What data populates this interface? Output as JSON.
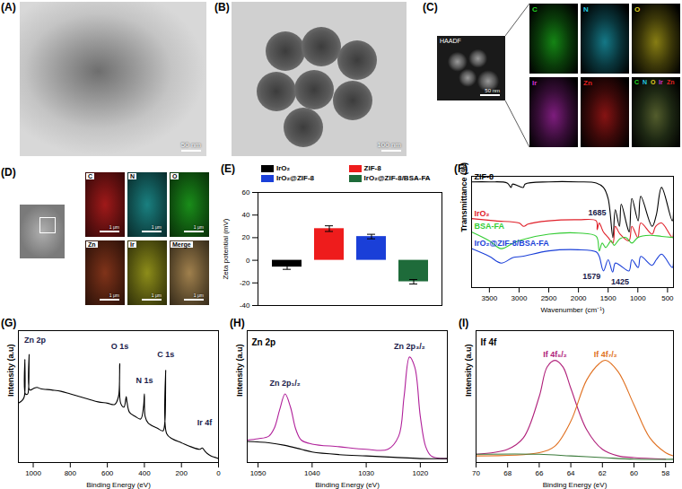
{
  "chart_data": [
    {
      "type": "image",
      "title": "(A)",
      "annotations": [
        "50 nm"
      ]
    },
    {
      "type": "image",
      "title": "(B)",
      "annotations": [
        "100 nm"
      ]
    },
    {
      "type": "image",
      "title": "(C)",
      "annotations": [
        "HAADF",
        "50 nm"
      ],
      "maps": [
        "C",
        "N",
        "O",
        "Ir",
        "Zn"
      ],
      "colors": [
        "#22dd22",
        "#22c8e0",
        "#e0d020",
        "#d030d0",
        "#e02020"
      ]
    },
    {
      "type": "image",
      "title": "(D)",
      "annotations": [
        "1 μm"
      ],
      "maps": [
        "C",
        "N",
        "O",
        "Zn",
        "Ir",
        "Merge"
      ],
      "colors": [
        "#c82020",
        "#20a0a0",
        "#20b020",
        "#a04020",
        "#b0b020",
        "#c8a060"
      ]
    },
    {
      "type": "bar",
      "title": "(E)",
      "categories": [
        "IrO₂",
        "ZIF-8",
        "IrO₂@ZIF-8",
        "IrO₂@ZIF-8/BSA-FA"
      ],
      "values": [
        -6,
        28,
        21,
        -19
      ],
      "errors": [
        2,
        2.5,
        2,
        2
      ],
      "colors": [
        "#000000",
        "#ee1c1c",
        "#1a3fd8",
        "#1e6b3a"
      ],
      "y_label": "Zeta potential (mV)",
      "ylim": [
        -40,
        60
      ],
      "yticks": [
        -40,
        -20,
        0,
        20,
        40,
        60
      ],
      "legend": "top",
      "tick_labels": "y",
      "grid": false
    },
    {
      "type": "line",
      "title": "(F)",
      "x_label": "Wavenumber (cm⁻¹)",
      "y_label": "Transmittance (%)",
      "xlim": [
        3800,
        400
      ],
      "xticks": [
        3500,
        3000,
        2500,
        2000,
        1500,
        1000,
        500
      ],
      "ylim": [
        0,
        100
      ],
      "tick_labels": "x",
      "series": [
        {
          "name": "ZIF-8",
          "color": "#000000",
          "x": [
            3800,
            3500,
            3200,
            3135,
            3110,
            2930,
            2900,
            2500,
            2000,
            1700,
            1580,
            1500,
            1420,
            1380,
            1310,
            1280,
            1180,
            1145,
            1100,
            995,
            950,
            760,
            690,
            600,
            420,
            400
          ],
          "values": [
            95,
            95,
            94,
            90,
            93,
            90,
            93,
            95,
            95,
            94,
            90,
            80,
            45,
            70,
            55,
            75,
            55,
            50,
            80,
            60,
            82,
            55,
            65,
            90,
            60,
            80
          ]
        },
        {
          "name": "IrO₂",
          "color": "#e0202a",
          "x": [
            3800,
            3400,
            3000,
            2920,
            2850,
            2500,
            2000,
            1700,
            1685,
            1650,
            1580,
            1500,
            1420,
            1380,
            1300,
            1150,
            1100,
            1000,
            950,
            760,
            700,
            600,
            420,
            400
          ],
          "values": [
            62,
            60,
            58,
            55,
            57,
            60,
            61,
            60,
            52,
            58,
            50,
            45,
            40,
            55,
            48,
            42,
            55,
            45,
            58,
            48,
            55,
            58,
            45,
            50
          ]
        },
        {
          "name": "BSA-FA",
          "color": "#33cc33",
          "x": [
            3800,
            3500,
            3300,
            3100,
            2950,
            2500,
            2000,
            1700,
            1650,
            1600,
            1540,
            1450,
            1400,
            1300,
            1200,
            1100,
            1000,
            800,
            600,
            400
          ],
          "values": [
            50,
            42,
            35,
            40,
            43,
            48,
            49,
            46,
            33,
            40,
            36,
            42,
            38,
            44,
            45,
            40,
            45,
            47,
            46,
            45
          ]
        },
        {
          "name": "IrO₂@ZIF-8/BSA-FA",
          "color": "#1a3fd8",
          "x": [
            3800,
            3500,
            3300,
            3100,
            2950,
            2500,
            2000,
            1700,
            1650,
            1579,
            1500,
            1425,
            1380,
            1300,
            1150,
            1100,
            995,
            950,
            760,
            690,
            600,
            420,
            400
          ],
          "values": [
            35,
            28,
            22,
            27,
            28,
            33,
            34,
            32,
            28,
            15,
            25,
            14,
            22,
            20,
            15,
            25,
            18,
            28,
            20,
            25,
            30,
            18,
            25
          ]
        }
      ],
      "annotations": [
        {
          "text": "1685",
          "x": 1685,
          "y": 67
        },
        {
          "text": "1579",
          "x": 1780,
          "y": 10
        },
        {
          "text": "1425",
          "x": 1300,
          "y": 5
        }
      ]
    },
    {
      "type": "line",
      "title": "(G)",
      "x_label": "Binding Energy (eV)",
      "y_label": "Intensity (a.u)",
      "xlim": [
        1080,
        0
      ],
      "xticks": [
        1000,
        800,
        600,
        400,
        200,
        0
      ],
      "ylim": [
        0,
        1
      ],
      "tick_labels": "x",
      "series": [
        {
          "color": "#000000",
          "x": [
            1080,
            1060,
            1048,
            1045,
            1042,
            1030,
            1025,
            1022,
            1019,
            1000,
            980,
            960,
            900,
            850,
            800,
            750,
            700,
            650,
            600,
            560,
            540,
            533,
            528,
            510,
            498,
            494,
            480,
            450,
            420,
            405,
            400,
            396,
            380,
            330,
            300,
            290,
            285,
            280,
            250,
            200,
            150,
            100,
            88,
            70,
            62,
            40,
            20,
            0
          ],
          "values": [
            0.45,
            0.47,
            0.5,
            0.78,
            0.52,
            0.52,
            0.56,
            0.82,
            0.55,
            0.56,
            0.57,
            0.56,
            0.55,
            0.54,
            0.52,
            0.5,
            0.48,
            0.46,
            0.45,
            0.44,
            0.5,
            0.75,
            0.45,
            0.42,
            0.5,
            0.46,
            0.38,
            0.35,
            0.33,
            0.42,
            0.52,
            0.35,
            0.3,
            0.26,
            0.24,
            0.3,
            0.7,
            0.22,
            0.18,
            0.15,
            0.12,
            0.1,
            0.11,
            0.08,
            0.07,
            0.05,
            0.04,
            0.03
          ]
        }
      ],
      "annotations": [
        {
          "text": "Zn 2p",
          "x": 990,
          "y": 0.93
        },
        {
          "text": "O 1s",
          "x": 533,
          "y": 0.88
        },
        {
          "text": "N 1s",
          "x": 400,
          "y": 0.62
        },
        {
          "text": "C 1s",
          "x": 285,
          "y": 0.82
        },
        {
          "text": "Ir 4f",
          "x": 75,
          "y": 0.3
        }
      ]
    },
    {
      "type": "line",
      "title": "(H)",
      "subtitle": "Zn 2p",
      "x_label": "Binding Energy (eV)",
      "y_label": "Intensity (a.u)",
      "xlim": [
        1052,
        1015
      ],
      "xticks": [
        1050,
        1040,
        1030,
        1020
      ],
      "ylim": [
        0,
        1
      ],
      "tick_labels": "x",
      "series": [
        {
          "color": "#b0209a",
          "x": [
            1052,
            1050,
            1048,
            1047,
            1046,
            1045,
            1044,
            1043,
            1042,
            1040,
            1035,
            1030,
            1026,
            1024,
            1023,
            1022,
            1021,
            1020,
            1019,
            1018,
            1016,
            1015
          ],
          "values": [
            0.17,
            0.18,
            0.2,
            0.26,
            0.4,
            0.52,
            0.42,
            0.25,
            0.17,
            0.14,
            0.12,
            0.1,
            0.1,
            0.2,
            0.5,
            0.8,
            0.72,
            0.35,
            0.12,
            0.05,
            0.03,
            0.03
          ]
        },
        {
          "color": "#000000",
          "x": [
            1052,
            1048,
            1045,
            1042,
            1040,
            1035,
            1030,
            1025,
            1020,
            1015
          ],
          "values": [
            0.16,
            0.15,
            0.13,
            0.1,
            0.08,
            0.06,
            0.05,
            0.04,
            0.03,
            0.03
          ]
        }
      ],
      "annotations": [
        {
          "text": "Zn 2p₁/₂",
          "x": 1045,
          "y": 0.6
        },
        {
          "text": "Zn 2p₃/₂",
          "x": 1022,
          "y": 0.88
        }
      ]
    },
    {
      "type": "line",
      "title": "(I)",
      "subtitle": "If 4f",
      "x_label": "Binding Energy (eV)",
      "y_label": "Intensity (a.u)",
      "xlim": [
        70,
        57.5
      ],
      "xticks": [
        70,
        68,
        66,
        64,
        62,
        60,
        58
      ],
      "ylim": [
        0,
        0.8
      ],
      "tick_labels": "x",
      "series": [
        {
          "name": "If 4f₅/₂",
          "color": "#b0207a",
          "x": [
            70,
            68,
            67,
            66,
            65.5,
            65,
            64.5,
            64,
            63,
            62,
            61,
            60,
            58
          ],
          "values": [
            0.05,
            0.08,
            0.15,
            0.4,
            0.58,
            0.62,
            0.58,
            0.45,
            0.2,
            0.08,
            0.04,
            0.03,
            0.02
          ]
        },
        {
          "name": "If 4f₇/₂",
          "color": "#e07020",
          "x": [
            70,
            66,
            65,
            64,
            63,
            62.2,
            61.8,
            61,
            60,
            59,
            58,
            57.5
          ],
          "values": [
            0.04,
            0.06,
            0.1,
            0.25,
            0.5,
            0.6,
            0.62,
            0.55,
            0.35,
            0.15,
            0.06,
            0.04
          ]
        },
        {
          "color": "#3a7a3a",
          "x": [
            70,
            66,
            64,
            62,
            60,
            57.5
          ],
          "values": [
            0.05,
            0.05,
            0.04,
            0.03,
            0.02,
            0.02
          ]
        }
      ]
    }
  ]
}
